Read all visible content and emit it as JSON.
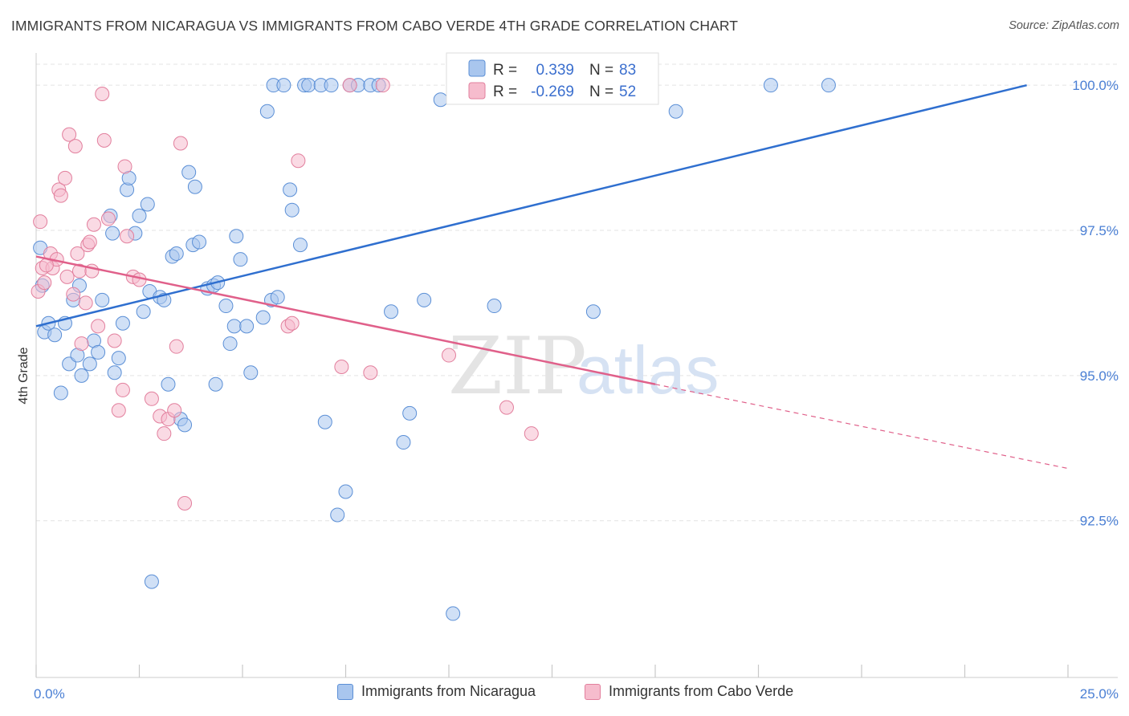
{
  "header": {
    "title": "IMMIGRANTS FROM NICARAGUA VS IMMIGRANTS FROM CABO VERDE 4TH GRADE CORRELATION CHART",
    "source": "Source: ZipAtlas.com"
  },
  "watermark": {
    "part1": "ZIP",
    "part2": "atlas"
  },
  "legend_stats": [
    {
      "r_label": "R =",
      "r_value": "0.339",
      "n_label": "N =",
      "n_value": "83"
    },
    {
      "r_label": "R =",
      "r_value": "-0.269",
      "n_label": "N =",
      "n_value": "52"
    }
  ],
  "bottom_legend": [
    {
      "label": "Immigrants from Nicaragua"
    },
    {
      "label": "Immigrants from Cabo Verde"
    }
  ],
  "colors": {
    "blue_fill": "#a9c6ee",
    "blue_stroke": "#5b8fd6",
    "blue_line": "#2f6fcf",
    "pink_fill": "#f6bccd",
    "pink_stroke": "#e27f9d",
    "pink_line": "#e0608a",
    "grid": "#e3e3e3",
    "axis_text": "#4a7fd4"
  },
  "chart_data": {
    "type": "scatter",
    "title": "IMMIGRANTS FROM NICARAGUA VS IMMIGRANTS FROM CABO VERDE 4TH GRADE CORRELATION CHART",
    "xlabel": "",
    "ylabel": "4th Grade",
    "xlim": [
      0,
      25
    ],
    "ylim": [
      89.8,
      100.5
    ],
    "x_tick_labels": [
      "0.0%",
      "25.0%"
    ],
    "y_ticks": [
      92.5,
      95.0,
      97.5,
      100.0
    ],
    "y_tick_labels": [
      "92.5%",
      "95.0%",
      "97.5%",
      "100.0%"
    ],
    "series": [
      {
        "name": "Immigrants from Nicaragua",
        "color": "#5b8fd6",
        "r": 0.339,
        "n": 83,
        "trend": {
          "x": [
            0,
            24.0
          ],
          "y": [
            95.85,
            100.0
          ]
        },
        "points": [
          [
            0.1,
            97.2
          ],
          [
            0.15,
            96.55
          ],
          [
            0.2,
            95.75
          ],
          [
            0.3,
            95.9
          ],
          [
            0.45,
            95.7
          ],
          [
            0.6,
            94.7
          ],
          [
            0.7,
            95.9
          ],
          [
            0.8,
            95.2
          ],
          [
            0.9,
            96.3
          ],
          [
            1.0,
            95.35
          ],
          [
            1.05,
            96.55
          ],
          [
            1.1,
            95.0
          ],
          [
            1.3,
            95.2
          ],
          [
            1.4,
            95.6
          ],
          [
            1.5,
            95.4
          ],
          [
            1.6,
            96.3
          ],
          [
            1.8,
            97.75
          ],
          [
            1.85,
            97.45
          ],
          [
            1.9,
            95.05
          ],
          [
            2.0,
            95.3
          ],
          [
            2.1,
            95.9
          ],
          [
            2.2,
            98.2
          ],
          [
            2.25,
            98.4
          ],
          [
            2.4,
            97.45
          ],
          [
            2.5,
            97.75
          ],
          [
            2.6,
            96.1
          ],
          [
            2.7,
            97.95
          ],
          [
            2.75,
            96.45
          ],
          [
            3.0,
            96.35
          ],
          [
            3.1,
            96.3
          ],
          [
            3.2,
            94.85
          ],
          [
            3.3,
            97.05
          ],
          [
            3.4,
            97.1
          ],
          [
            3.5,
            94.25
          ],
          [
            3.6,
            94.15
          ],
          [
            3.7,
            98.5
          ],
          [
            3.8,
            97.25
          ],
          [
            3.85,
            98.25
          ],
          [
            3.95,
            97.3
          ],
          [
            4.15,
            96.5
          ],
          [
            4.3,
            96.55
          ],
          [
            4.4,
            96.6
          ],
          [
            4.35,
            94.85
          ],
          [
            4.6,
            96.2
          ],
          [
            4.7,
            95.55
          ],
          [
            4.8,
            95.85
          ],
          [
            4.85,
            97.4
          ],
          [
            4.95,
            97.0
          ],
          [
            5.1,
            95.85
          ],
          [
            5.2,
            95.05
          ],
          [
            5.5,
            96.0
          ],
          [
            5.6,
            99.55
          ],
          [
            5.7,
            96.3
          ],
          [
            5.75,
            100.0
          ],
          [
            5.85,
            96.35
          ],
          [
            6.0,
            100.0
          ],
          [
            6.15,
            98.2
          ],
          [
            6.2,
            97.85
          ],
          [
            6.4,
            97.25
          ],
          [
            6.5,
            100.0
          ],
          [
            6.6,
            100.0
          ],
          [
            6.9,
            100.0
          ],
          [
            7.0,
            94.2
          ],
          [
            7.15,
            100.0
          ],
          [
            7.3,
            92.6
          ],
          [
            7.6,
            100.0
          ],
          [
            7.8,
            100.0
          ],
          [
            8.1,
            100.0
          ],
          [
            8.3,
            100.0
          ],
          [
            8.6,
            96.1
          ],
          [
            8.9,
            93.85
          ],
          [
            9.05,
            94.35
          ],
          [
            9.4,
            96.3
          ],
          [
            9.8,
            99.75
          ],
          [
            10.1,
            90.9
          ],
          [
            10.3,
            100.0
          ],
          [
            11.1,
            96.2
          ],
          [
            13.5,
            96.1
          ],
          [
            15.5,
            99.55
          ],
          [
            17.8,
            100.0
          ],
          [
            19.2,
            100.0
          ],
          [
            7.5,
            93.0
          ],
          [
            2.8,
            91.45
          ]
        ]
      },
      {
        "name": "Immigrants from Cabo Verde",
        "color": "#e27f9d",
        "r": -0.269,
        "n": 52,
        "trend": {
          "x": [
            0,
            15.0
          ],
          "y": [
            97.05,
            94.85
          ]
        },
        "trend_dashed": {
          "x": [
            15.0,
            25.0
          ],
          "y": [
            94.85,
            93.4
          ]
        },
        "points": [
          [
            0.05,
            96.45
          ],
          [
            0.1,
            97.65
          ],
          [
            0.15,
            96.85
          ],
          [
            0.2,
            96.6
          ],
          [
            0.35,
            97.1
          ],
          [
            0.4,
            96.85
          ],
          [
            0.5,
            97.0
          ],
          [
            0.55,
            98.2
          ],
          [
            0.6,
            98.1
          ],
          [
            0.7,
            98.4
          ],
          [
            0.75,
            96.7
          ],
          [
            0.8,
            99.15
          ],
          [
            0.9,
            96.4
          ],
          [
            0.95,
            98.95
          ],
          [
            1.0,
            97.1
          ],
          [
            1.05,
            96.8
          ],
          [
            1.1,
            95.55
          ],
          [
            1.2,
            96.25
          ],
          [
            1.25,
            97.25
          ],
          [
            1.3,
            97.3
          ],
          [
            1.35,
            96.8
          ],
          [
            1.4,
            97.6
          ],
          [
            1.5,
            95.85
          ],
          [
            1.6,
            99.85
          ],
          [
            1.65,
            99.05
          ],
          [
            1.75,
            97.7
          ],
          [
            1.9,
            95.6
          ],
          [
            2.0,
            94.4
          ],
          [
            2.1,
            94.75
          ],
          [
            2.15,
            98.6
          ],
          [
            2.2,
            97.4
          ],
          [
            2.35,
            96.7
          ],
          [
            2.5,
            96.65
          ],
          [
            2.8,
            94.6
          ],
          [
            3.0,
            94.3
          ],
          [
            3.1,
            94.0
          ],
          [
            3.2,
            94.25
          ],
          [
            3.35,
            94.4
          ],
          [
            3.4,
            95.5
          ],
          [
            3.5,
            99.0
          ],
          [
            3.6,
            92.8
          ],
          [
            6.1,
            95.85
          ],
          [
            6.2,
            95.9
          ],
          [
            6.35,
            98.7
          ],
          [
            7.4,
            95.15
          ],
          [
            7.6,
            100.0
          ],
          [
            8.1,
            95.05
          ],
          [
            8.4,
            100.0
          ],
          [
            10.0,
            95.35
          ],
          [
            11.4,
            94.45
          ],
          [
            12.0,
            94.0
          ],
          [
            0.25,
            96.9
          ]
        ]
      }
    ]
  }
}
